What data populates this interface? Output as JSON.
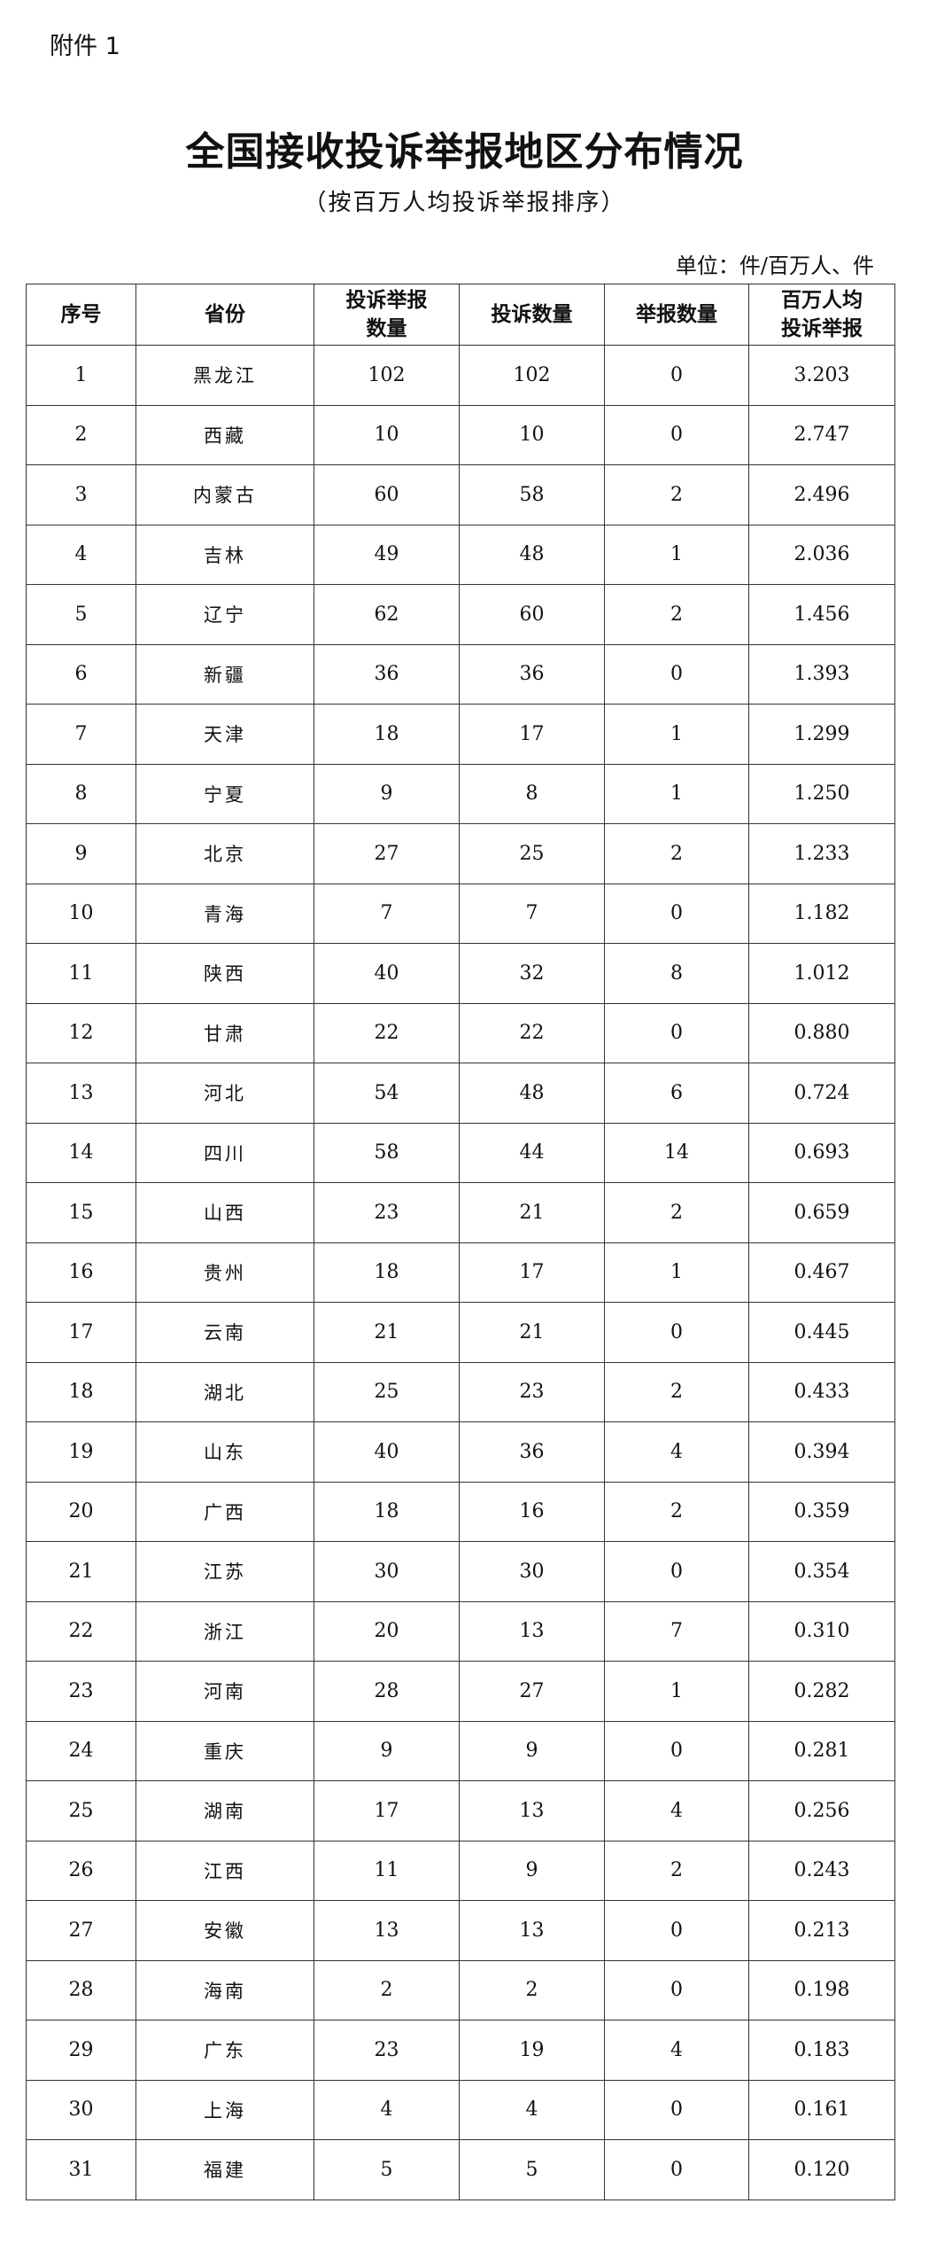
{
  "attachment_label": "附件 1",
  "title": "全国接收投诉举报地区分布情况",
  "subtitle": "（按百万人均投诉举报排序）",
  "unit": "单位：件/百万人、件",
  "table": {
    "headers": [
      "序号",
      "省份",
      "投诉举报数量",
      "投诉数量",
      "举报数量",
      "百万人均投诉举报"
    ],
    "header_lines": [
      [
        "序号"
      ],
      [
        "省份"
      ],
      [
        "投诉举报",
        "数量"
      ],
      [
        "投诉数量"
      ],
      [
        "举报数量"
      ],
      [
        "百万人均",
        "投诉举报"
      ]
    ],
    "rows": [
      [
        "1",
        "黑龙江",
        "102",
        "102",
        "0",
        "3.203"
      ],
      [
        "2",
        "西藏",
        "10",
        "10",
        "0",
        "2.747"
      ],
      [
        "3",
        "内蒙古",
        "60",
        "58",
        "2",
        "2.496"
      ],
      [
        "4",
        "吉林",
        "49",
        "48",
        "1",
        "2.036"
      ],
      [
        "5",
        "辽宁",
        "62",
        "60",
        "2",
        "1.456"
      ],
      [
        "6",
        "新疆",
        "36",
        "36",
        "0",
        "1.393"
      ],
      [
        "7",
        "天津",
        "18",
        "17",
        "1",
        "1.299"
      ],
      [
        "8",
        "宁夏",
        "9",
        "8",
        "1",
        "1.250"
      ],
      [
        "9",
        "北京",
        "27",
        "25",
        "2",
        "1.233"
      ],
      [
        "10",
        "青海",
        "7",
        "7",
        "0",
        "1.182"
      ],
      [
        "11",
        "陕西",
        "40",
        "32",
        "8",
        "1.012"
      ],
      [
        "12",
        "甘肃",
        "22",
        "22",
        "0",
        "0.880"
      ],
      [
        "13",
        "河北",
        "54",
        "48",
        "6",
        "0.724"
      ],
      [
        "14",
        "四川",
        "58",
        "44",
        "14",
        "0.693"
      ],
      [
        "15",
        "山西",
        "23",
        "21",
        "2",
        "0.659"
      ],
      [
        "16",
        "贵州",
        "18",
        "17",
        "1",
        "0.467"
      ],
      [
        "17",
        "云南",
        "21",
        "21",
        "0",
        "0.445"
      ],
      [
        "18",
        "湖北",
        "25",
        "23",
        "2",
        "0.433"
      ],
      [
        "19",
        "山东",
        "40",
        "36",
        "4",
        "0.394"
      ],
      [
        "20",
        "广西",
        "18",
        "16",
        "2",
        "0.359"
      ],
      [
        "21",
        "江苏",
        "30",
        "30",
        "0",
        "0.354"
      ],
      [
        "22",
        "浙江",
        "20",
        "13",
        "7",
        "0.310"
      ],
      [
        "23",
        "河南",
        "28",
        "27",
        "1",
        "0.282"
      ],
      [
        "24",
        "重庆",
        "9",
        "9",
        "0",
        "0.281"
      ],
      [
        "25",
        "湖南",
        "17",
        "13",
        "4",
        "0.256"
      ],
      [
        "26",
        "江西",
        "11",
        "9",
        "2",
        "0.243"
      ],
      [
        "27",
        "安徽",
        "13",
        "13",
        "0",
        "0.213"
      ],
      [
        "28",
        "海南",
        "2",
        "2",
        "0",
        "0.198"
      ],
      [
        "29",
        "广东",
        "23",
        "19",
        "4",
        "0.183"
      ],
      [
        "30",
        "上海",
        "4",
        "4",
        "0",
        "0.161"
      ],
      [
        "31",
        "福建",
        "5",
        "5",
        "0",
        "0.120"
      ]
    ]
  }
}
